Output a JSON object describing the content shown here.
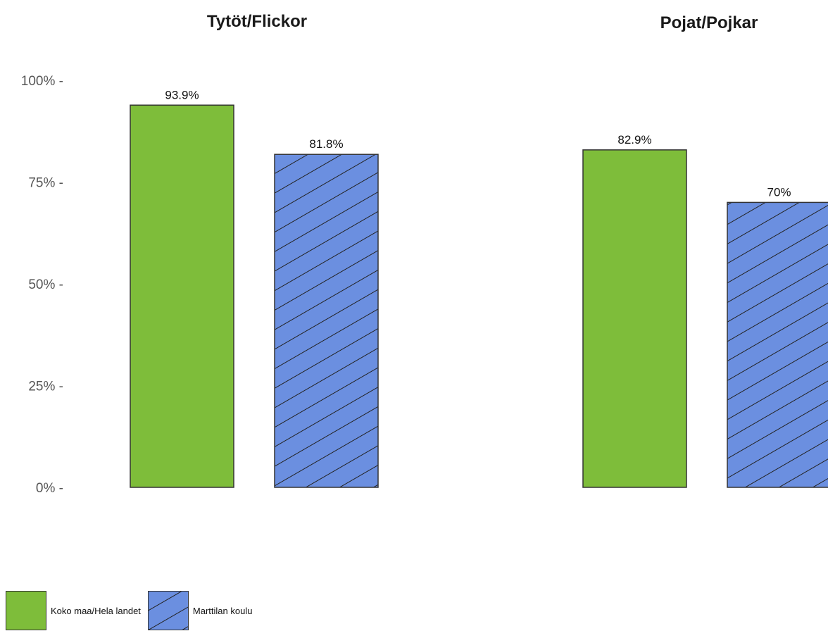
{
  "chart_data": {
    "type": "bar",
    "y_ticks": [
      "100%",
      "75%",
      "50%",
      "25%",
      "0%"
    ],
    "ylim": [
      0,
      100
    ],
    "panels": [
      {
        "title": "Tytöt/Flickor",
        "bars": [
          {
            "series": "Koko maa/Hela landet",
            "value": 93.9,
            "label": "93.9%"
          },
          {
            "series": "Marttilan koulu",
            "value": 81.8,
            "label": "81.8%"
          }
        ]
      },
      {
        "title": "Pojat/Pojkar",
        "bars": [
          {
            "series": "Koko maa/Hela landet",
            "value": 82.9,
            "label": "82.9%"
          },
          {
            "series": "Marttilan koulu",
            "value": 70,
            "label": "70%"
          }
        ]
      }
    ],
    "series": [
      {
        "name": "Koko maa/Hela landet",
        "color": "#7ebd3a",
        "pattern": "solid"
      },
      {
        "name": "Marttilan koulu",
        "color": "#6b8fe0",
        "pattern": "hatched"
      }
    ],
    "legend_position": "bottom-left"
  }
}
